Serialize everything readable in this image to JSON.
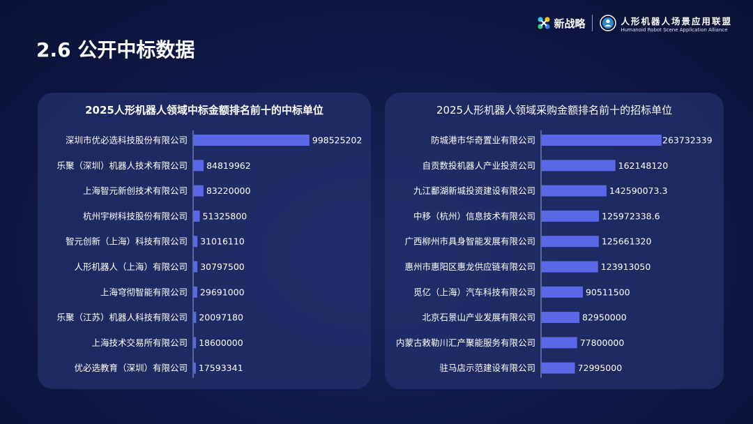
{
  "page": {
    "title": "2.6 公开中标数据"
  },
  "logos": {
    "xinzhanlue": "新战略",
    "alliance_cn": "人形机器人场景应用联盟",
    "alliance_en": "Humanoid Robot Scene Application Alliance"
  },
  "colors": {
    "bar": "#5a67e6",
    "panel": "#24306e",
    "background": "#0f1845"
  },
  "chart_data": [
    {
      "type": "bar",
      "orientation": "horizontal",
      "title": "2025人形机器人领域中标金额排名前十的中标单位",
      "categories": [
        "深圳市优必选科技股份有限公司",
        "乐聚（深圳）机器人技术有限公司",
        "上海智元新创技术有限公司",
        "杭州宇树科技股份有限公司",
        "智元创新（上海）科技有限公司",
        "人形机器人（上海）有限公司",
        "上海穹彻智能有限公司",
        "乐聚（江苏）机器人科技有限公司",
        "上海技术交易所有限公司",
        "优必选教育（深圳）有限公司"
      ],
      "values": [
        998525202,
        84819962,
        83220000,
        51325800,
        31016110,
        30797500,
        29691000,
        20097180,
        18600000,
        17593341
      ],
      "value_labels": [
        "998525202",
        "84819962",
        "83220000",
        "51325800",
        "31016110",
        "30797500",
        "29691000",
        "20097180",
        "18600000",
        "17593341"
      ],
      "xlim": [
        0,
        1000000000
      ],
      "grid": false,
      "legend": "none"
    },
    {
      "type": "bar",
      "orientation": "horizontal",
      "title": "2025人形机器人领域采购金额排名前十的招标单位",
      "categories": [
        "防城港市华奇置业有限公司",
        "自贡数投机器人产业投资公司",
        "九江鄱湖新城投资建设有限公司",
        "中移（杭州）信息技术有限公司",
        "广西柳州市具身智能发展有限公司",
        "惠州市惠阳区惠龙供应链有限公司",
        "觅亿（上海）汽车科技有限公司",
        "北京石景山产业发展有限公司",
        "内蒙古敕勒川汇产聚能服务有限公司",
        "驻马店示范建设有限公司"
      ],
      "values": [
        263732339,
        162148120,
        142590073.3,
        125972338.6,
        125661320,
        123913050,
        90511500,
        82950000,
        77800000,
        72995000
      ],
      "value_labels": [
        "263732339",
        "162148120",
        "142590073.3",
        "125972338.6",
        "125661320",
        "123913050",
        "90511500",
        "82950000",
        "77800000",
        "72995000"
      ],
      "xlim": [
        0,
        264000000
      ],
      "grid": false,
      "legend": "none"
    }
  ]
}
